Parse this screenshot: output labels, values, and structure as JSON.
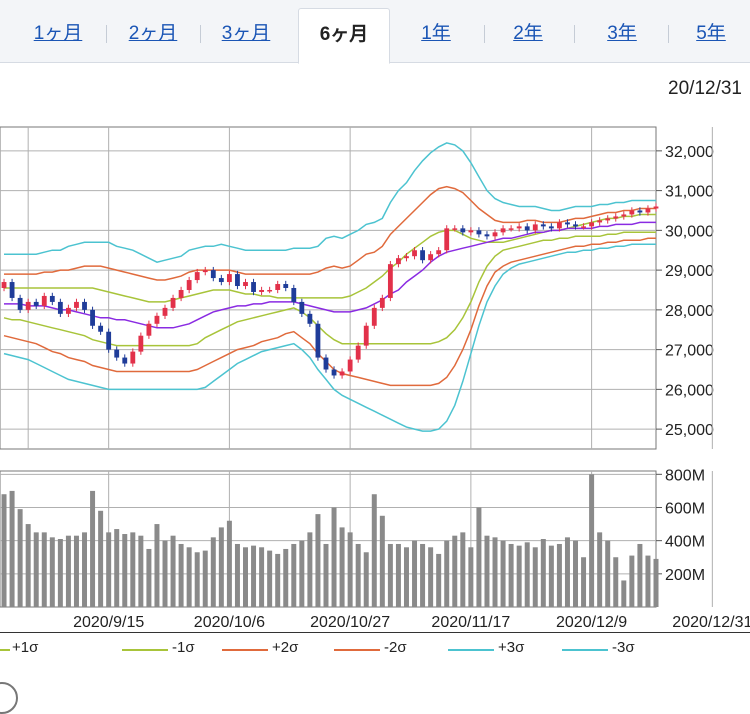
{
  "tabs": [
    {
      "label": "1ヶ月",
      "active": false
    },
    {
      "label": "2ヶ月",
      "active": false
    },
    {
      "label": "3ヶ月",
      "active": false
    },
    {
      "label": "6ヶ月",
      "active": true
    },
    {
      "label": "1年",
      "active": false
    },
    {
      "label": "2年",
      "active": false
    },
    {
      "label": "3年",
      "active": false
    },
    {
      "label": "5年",
      "active": false
    }
  ],
  "date_label": "20/12/31",
  "colors": {
    "up": "#e2314a",
    "down": "#1f3c99",
    "ma": "#8a2be2",
    "sigma1": "#a8c43a",
    "sigma2": "#e06a3c",
    "sigma3": "#4cc3d0",
    "volume": "#8a8a8a",
    "grid": "#b0b0b0"
  },
  "legend": [
    {
      "label": "+1σ",
      "color": "#a8c43a"
    },
    {
      "label": "-1σ",
      "color": "#a8c43a"
    },
    {
      "label": "+2σ",
      "color": "#e06a3c"
    },
    {
      "label": "-2σ",
      "color": "#e06a3c"
    },
    {
      "label": "+3σ",
      "color": "#4cc3d0"
    },
    {
      "label": "-3σ",
      "color": "#4cc3d0"
    }
  ],
  "chart_data": [
    {
      "type": "candlestick",
      "ylim": [
        24500,
        32600
      ],
      "y_ticks": [
        25000,
        26000,
        27000,
        28000,
        29000,
        30000,
        31000,
        32000
      ],
      "y_tick_labels": [
        "25,000",
        "26,000",
        "27,000",
        "28,000",
        "29,000",
        "30,000",
        "31,000",
        "32,000"
      ],
      "x_ticks": [
        {
          "label": "2020/9/15",
          "index": 13
        },
        {
          "label": "2020/10/6",
          "index": 28
        },
        {
          "label": "2020/10/27",
          "index": 43
        },
        {
          "label": "2020/11/17",
          "index": 58
        },
        {
          "label": "2020/12/9",
          "index": 73
        },
        {
          "label": "2020/12/31",
          "index": 88
        }
      ],
      "grid": true,
      "candles_close": [
        28700,
        28300,
        28000,
        28200,
        28100,
        28350,
        28200,
        27900,
        28050,
        28200,
        28000,
        27600,
        27450,
        27000,
        26800,
        26650,
        26950,
        27350,
        27650,
        27850,
        28050,
        28300,
        28500,
        28750,
        28950,
        29000,
        28800,
        28700,
        28900,
        28600,
        28700,
        28450,
        28500,
        28500,
        28650,
        28550,
        28200,
        27900,
        27650,
        26800,
        26500,
        26350,
        26450,
        26750,
        27100,
        27600,
        28050,
        28300,
        29150,
        29300,
        29350,
        29500,
        29250,
        29400,
        29500,
        30050,
        30050,
        29950,
        30000,
        29900,
        29850,
        29950,
        30050,
        30050,
        30100,
        30000,
        30150,
        30100,
        30050,
        30200,
        30150,
        30100,
        30100,
        30200,
        30250,
        30300,
        30350,
        30400,
        30500,
        30450,
        30550,
        30600
      ],
      "upper3": [
        29400,
        29400,
        29400,
        29400,
        29400,
        29450,
        29500,
        29500,
        29600,
        29650,
        29700,
        29700,
        29700,
        29700,
        29600,
        29550,
        29500,
        29400,
        29300,
        29200,
        29250,
        29300,
        29350,
        29500,
        29550,
        29600,
        29600,
        29650,
        29600,
        29550,
        29500,
        29500,
        29500,
        29500,
        29500,
        29500,
        29550,
        29550,
        29550,
        29600,
        29800,
        29850,
        29800,
        29900,
        30000,
        30150,
        30200,
        30300,
        30700,
        31000,
        31200,
        31500,
        31750,
        31950,
        32100,
        32200,
        32150,
        32000,
        31700,
        31350,
        31000,
        30800,
        30700,
        30650,
        30600,
        30600,
        30600,
        30550,
        30500,
        30500,
        30550,
        30600,
        30600,
        30600,
        30650,
        30650,
        30700,
        30700,
        30750,
        30750,
        30750,
        30750
      ],
      "upper2": [
        28900,
        28900,
        28900,
        28900,
        28900,
        28950,
        28950,
        29000,
        29000,
        29050,
        29100,
        29100,
        29100,
        29050,
        29000,
        28950,
        28900,
        28850,
        28800,
        28750,
        28750,
        28800,
        28850,
        28950,
        29000,
        29000,
        29000,
        29000,
        29000,
        28950,
        28900,
        28900,
        28900,
        28900,
        28900,
        28900,
        28900,
        28900,
        28900,
        28950,
        29050,
        29100,
        29050,
        29100,
        29250,
        29400,
        29450,
        29600,
        29900,
        30100,
        30300,
        30500,
        30700,
        30900,
        31050,
        31100,
        31050,
        30950,
        30750,
        30550,
        30400,
        30250,
        30200,
        30200,
        30200,
        30250,
        30250,
        30200,
        30200,
        30200,
        30250,
        30300,
        30300,
        30350,
        30400,
        30450,
        30450,
        30500,
        30500,
        30550,
        30550,
        30550
      ],
      "upper1": [
        28550,
        28550,
        28550,
        28550,
        28550,
        28550,
        28550,
        28550,
        28550,
        28550,
        28550,
        28550,
        28500,
        28450,
        28400,
        28350,
        28300,
        28250,
        28200,
        28200,
        28200,
        28250,
        28300,
        28350,
        28400,
        28450,
        28500,
        28500,
        28500,
        28450,
        28400,
        28400,
        28350,
        28350,
        28300,
        28300,
        28300,
        28300,
        28300,
        28300,
        28300,
        28300,
        28300,
        28350,
        28450,
        28550,
        28700,
        28850,
        29050,
        29200,
        29400,
        29550,
        29700,
        29850,
        29950,
        30000,
        30000,
        29900,
        29800,
        29750,
        29700,
        29700,
        29700,
        29750,
        29800,
        29850,
        29900,
        29950,
        30000,
        30000,
        30050,
        30100,
        30150,
        30200,
        30250,
        30300,
        30300,
        30350,
        30350,
        30400,
        30400,
        30400
      ],
      "middle": [
        28150,
        28150,
        28150,
        28100,
        28100,
        28100,
        28050,
        28000,
        28000,
        27950,
        27900,
        27850,
        27800,
        27800,
        27750,
        27750,
        27700,
        27650,
        27600,
        27550,
        27550,
        27550,
        27600,
        27650,
        27750,
        27850,
        27950,
        28000,
        28050,
        28100,
        28100,
        28150,
        28150,
        28200,
        28200,
        28200,
        28200,
        28150,
        28100,
        28050,
        28000,
        27950,
        27950,
        27950,
        28000,
        28050,
        28150,
        28250,
        28400,
        28500,
        28700,
        28850,
        29000,
        29200,
        29350,
        29450,
        29500,
        29550,
        29600,
        29650,
        29700,
        29750,
        29800,
        29800,
        29850,
        29900,
        29950,
        29950,
        30000,
        30000,
        30050,
        30050,
        30050,
        30050,
        30100,
        30100,
        30150,
        30150,
        30150,
        30200,
        30200,
        30200
      ],
      "lower1": [
        27800,
        27750,
        27750,
        27700,
        27650,
        27600,
        27550,
        27500,
        27450,
        27400,
        27350,
        27250,
        27200,
        27150,
        27100,
        27100,
        27100,
        27100,
        27100,
        27100,
        27100,
        27100,
        27100,
        27100,
        27150,
        27300,
        27400,
        27500,
        27600,
        27700,
        27750,
        27800,
        27850,
        27900,
        27950,
        28000,
        28050,
        27950,
        27800,
        27600,
        27400,
        27250,
        27150,
        27150,
        27150,
        27150,
        27150,
        27150,
        27150,
        27150,
        27150,
        27150,
        27150,
        27150,
        27200,
        27300,
        27500,
        27800,
        28200,
        28700,
        29100,
        29350,
        29500,
        29550,
        29600,
        29650,
        29700,
        29750,
        29750,
        29800,
        29800,
        29850,
        29850,
        29850,
        29850,
        29900,
        29900,
        29950,
        29950,
        29950,
        29950,
        29950
      ],
      "lower2": [
        27350,
        27300,
        27250,
        27200,
        27150,
        27050,
        26950,
        26900,
        26800,
        26750,
        26700,
        26600,
        26550,
        26500,
        26450,
        26450,
        26450,
        26450,
        26450,
        26450,
        26450,
        26450,
        26450,
        26450,
        26500,
        26600,
        26700,
        26800,
        26900,
        27000,
        27050,
        27100,
        27200,
        27250,
        27300,
        27400,
        27450,
        27300,
        27150,
        26900,
        26700,
        26500,
        26400,
        26350,
        26300,
        26250,
        26200,
        26150,
        26100,
        26100,
        26100,
        26100,
        26100,
        26100,
        26150,
        26300,
        26600,
        27000,
        27500,
        28100,
        28600,
        28950,
        29100,
        29200,
        29250,
        29300,
        29350,
        29400,
        29450,
        29500,
        29550,
        29600,
        29600,
        29650,
        29650,
        29700,
        29700,
        29750,
        29750,
        29750,
        29800,
        29800
      ],
      "lower3": [
        26900,
        26850,
        26800,
        26750,
        26650,
        26550,
        26450,
        26350,
        26250,
        26200,
        26150,
        26100,
        26050,
        26000,
        26000,
        26000,
        26000,
        26000,
        26000,
        26000,
        26000,
        26000,
        26000,
        26000,
        26000,
        26050,
        26200,
        26350,
        26500,
        26650,
        26750,
        26850,
        26950,
        27000,
        27050,
        27100,
        27150,
        27000,
        26800,
        26500,
        26250,
        26000,
        25850,
        25750,
        25650,
        25550,
        25450,
        25350,
        25250,
        25150,
        25050,
        25000,
        24950,
        24950,
        25000,
        25200,
        25600,
        26200,
        26900,
        27600,
        28200,
        28600,
        28900,
        29050,
        29150,
        29200,
        29250,
        29300,
        29350,
        29400,
        29450,
        29450,
        29500,
        29500,
        29550,
        29550,
        29600,
        29600,
        29650,
        29650,
        29650,
        29650
      ]
    },
    {
      "type": "bar",
      "ylim": [
        0,
        820
      ],
      "y_ticks": [
        200,
        400,
        600,
        800
      ],
      "y_tick_labels": [
        "200M",
        "400M",
        "600M",
        "800M"
      ],
      "volumes": [
        680,
        700,
        590,
        500,
        450,
        450,
        420,
        410,
        430,
        430,
        450,
        700,
        580,
        450,
        470,
        440,
        450,
        430,
        350,
        500,
        400,
        430,
        380,
        360,
        330,
        340,
        420,
        480,
        520,
        380,
        360,
        370,
        360,
        340,
        320,
        350,
        380,
        400,
        450,
        560,
        380,
        600,
        480,
        450,
        380,
        330,
        680,
        550,
        380,
        380,
        360,
        400,
        380,
        360,
        320,
        400,
        430,
        450,
        360,
        600,
        430,
        420,
        400,
        380,
        370,
        390,
        360,
        410,
        370,
        380,
        420,
        400,
        300,
        800,
        450,
        400,
        300,
        160,
        310,
        380,
        310,
        290
      ]
    }
  ]
}
